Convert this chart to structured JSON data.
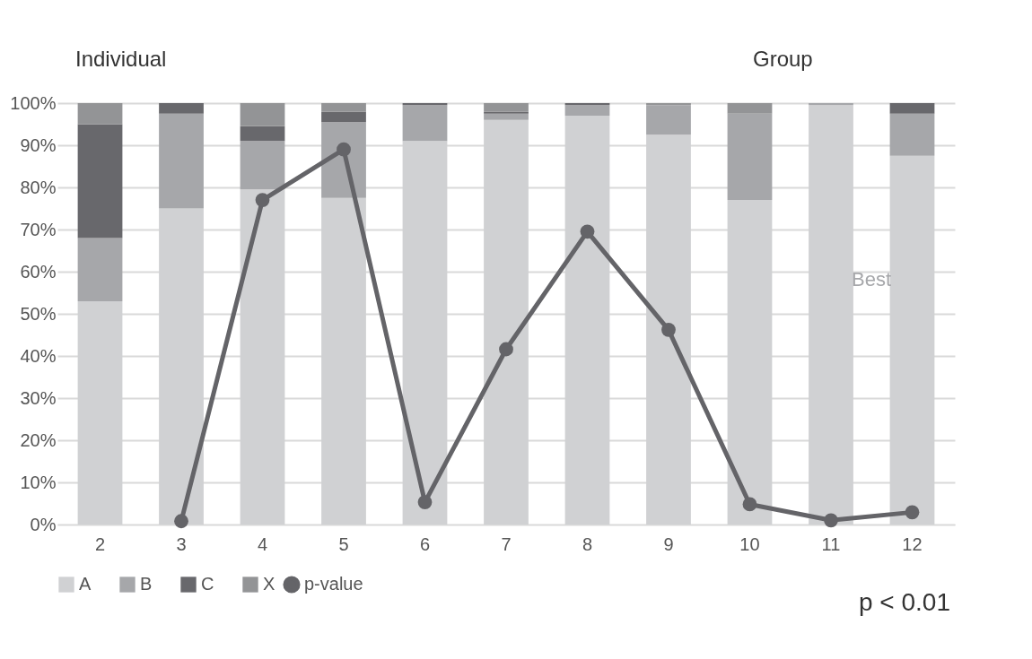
{
  "chart_data": {
    "type": "bar",
    "stacked": true,
    "categories": [
      "2",
      "3",
      "4",
      "5",
      "6",
      "7",
      "8",
      "9",
      "10",
      "11",
      "12"
    ],
    "series": [
      {
        "name": "A",
        "color": "#d0d1d3",
        "values": [
          53,
          75,
          79.5,
          77.5,
          91,
          96,
          97,
          92.5,
          77,
          99.5,
          87.5
        ]
      },
      {
        "name": "B",
        "color": "#a6a7aa",
        "values": [
          15,
          22.5,
          11.5,
          18,
          8.5,
          1.5,
          2.5,
          7,
          20.5,
          0.5,
          10
        ]
      },
      {
        "name": "C",
        "color": "#68686c",
        "values": [
          27,
          2.5,
          3.5,
          2.5,
          0.5,
          0.5,
          0.5,
          0,
          0,
          0,
          2.5
        ]
      },
      {
        "name": "X",
        "color": "#939496",
        "values": [
          5,
          0,
          5.5,
          2,
          0,
          2,
          0,
          0.5,
          2.5,
          0,
          0
        ]
      },
      {
        "name": "p-value",
        "type": "line",
        "color": "#646468",
        "marker": "circle",
        "values": [
          null,
          0.8,
          77,
          89,
          5.3,
          41.6,
          69.5,
          46.2,
          4.8,
          1,
          2.9
        ]
      }
    ],
    "ylim": [
      0,
      100
    ],
    "yticks": [
      {
        "value": 0,
        "label": "0%"
      },
      {
        "value": 10,
        "label": "10%"
      },
      {
        "value": 20,
        "label": "20%"
      },
      {
        "value": 30,
        "label": "30%"
      },
      {
        "value": 40,
        "label": "40%"
      },
      {
        "value": 50,
        "label": "50%"
      },
      {
        "value": 60,
        "label": "60%"
      },
      {
        "value": 70,
        "label": "70%"
      },
      {
        "value": 80,
        "label": "80%"
      },
      {
        "value": 90,
        "label": "90%"
      },
      {
        "value": 100,
        "label": "100%"
      }
    ],
    "grid": "y",
    "legend": "bottom",
    "annotations": [
      "Individual",
      "Group",
      "Best",
      "p < 0.01"
    ]
  }
}
